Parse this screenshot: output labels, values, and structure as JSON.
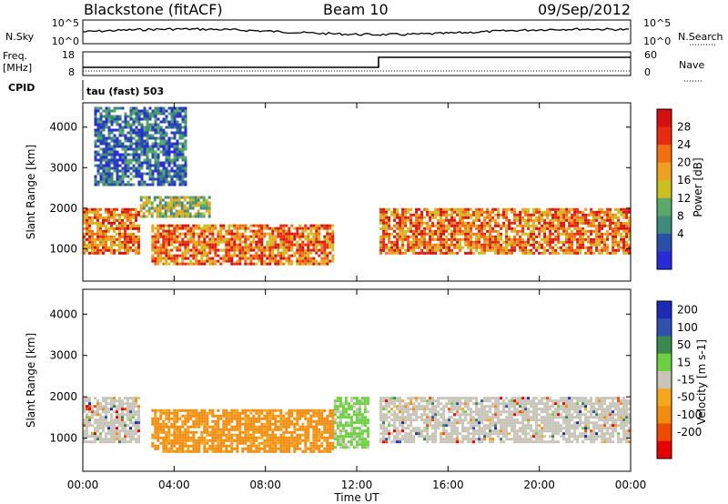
{
  "header": {
    "radar": "Blackstone (fitACF)",
    "beam": "Beam 10",
    "date": "09/Sep/2012"
  },
  "noise_panel": {
    "left_label": "N.Sky",
    "left_ticks": [
      "10^5",
      "10^0"
    ],
    "right_ticks": [
      "10^5",
      "10^0"
    ],
    "right_label": "N.Search"
  },
  "freq_panel": {
    "label_line1": "Freq.",
    "label_line2": "[MHz]",
    "left_ticks": [
      "18",
      "8"
    ],
    "right_ticks": [
      "60",
      "0"
    ],
    "right_label": "Nave",
    "cpid_label": "CPID",
    "cpid_text": "tau (fast) 503"
  },
  "colors": {
    "power": [
      "#2a2ad8",
      "#2a4fa8",
      "#3f8a7a",
      "#5aa86a",
      "#c8c020",
      "#f0a020",
      "#f07010",
      "#e82a10",
      "#d41010"
    ],
    "velocity": [
      "#e60000",
      "#f04a00",
      "#f08c10",
      "#f5a81e",
      "#c8c4b8",
      "#6cd040",
      "#3a8a50",
      "#3050b0",
      "#1e2ab4"
    ],
    "frame": "#000000"
  },
  "chart_data": [
    {
      "type": "heatmap",
      "name": "power",
      "ylabel": "Slant Range [km]",
      "yticks": [
        "1000",
        "2000",
        "3000",
        "4000"
      ],
      "ylim": [
        200,
        4600
      ],
      "xlim": [
        0,
        24
      ],
      "colorbar_label": "Power [dB]",
      "colorbar_ticks": [
        "4",
        "8",
        "12",
        "16",
        "20",
        "24",
        "28"
      ],
      "colorbar_range": [
        0,
        32
      ],
      "bands": [
        {
          "start_h": 0.0,
          "end_h": 2.5,
          "range_start_km": 900,
          "range_end_km": 2000,
          "level": "high"
        },
        {
          "start_h": 2.5,
          "end_h": 5.5,
          "range_start_km": 1800,
          "range_end_km": 2300,
          "level": "medium"
        },
        {
          "start_h": 3.0,
          "end_h": 11.0,
          "range_start_km": 650,
          "range_end_km": 1600,
          "level": "high"
        },
        {
          "start_h": 13.0,
          "end_h": 24.0,
          "range_start_km": 900,
          "range_end_km": 2000,
          "level": "high"
        },
        {
          "start_h": 0.5,
          "end_h": 4.5,
          "range_start_km": 2600,
          "range_end_km": 4500,
          "level": "low"
        }
      ]
    },
    {
      "type": "heatmap",
      "name": "velocity",
      "ylabel": "Slant Range [km]",
      "yticks": [
        "1000",
        "2000",
        "3000",
        "4000"
      ],
      "ylim": [
        200,
        4600
      ],
      "xlim": [
        0,
        24
      ],
      "colorbar_label": "Velocity [m s-1]",
      "colorbar_ticks": [
        "200",
        "100",
        "50",
        "15",
        "-15",
        "-50",
        "-100",
        "-200"
      ],
      "xticks": [
        "00:00",
        "04:00",
        "08:00",
        "12:00",
        "16:00",
        "20:00",
        "00:00"
      ],
      "xlabel": "Time UT",
      "bands": [
        {
          "start_h": 0.0,
          "end_h": 2.5,
          "range_start_km": 900,
          "range_end_km": 2000,
          "velocity": 0
        },
        {
          "start_h": 3.0,
          "end_h": 11.0,
          "range_start_km": 700,
          "range_end_km": 1700,
          "velocity": -70
        },
        {
          "start_h": 11.0,
          "end_h": 12.5,
          "range_start_km": 800,
          "range_end_km": 2000,
          "velocity": 30
        },
        {
          "start_h": 13.0,
          "end_h": 24.0,
          "range_start_km": 900,
          "range_end_km": 2000,
          "velocity": 0
        }
      ]
    }
  ]
}
